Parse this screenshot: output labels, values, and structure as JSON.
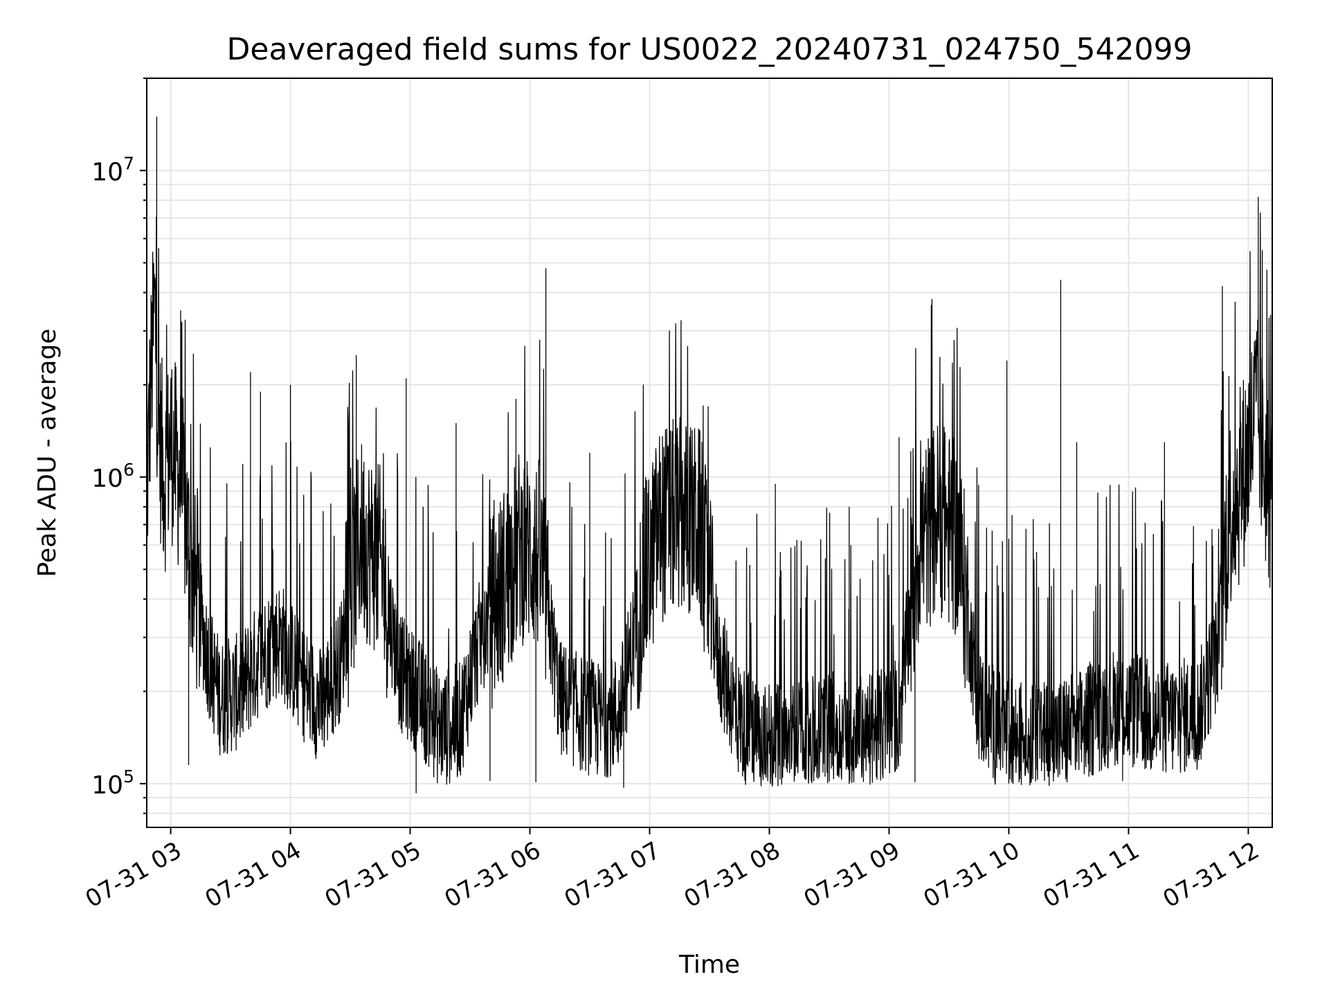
{
  "chart_data": {
    "type": "line",
    "title": "Deaveraged field sums for US0022_20240731_024750_542099",
    "xlabel": "Time",
    "ylabel": "Peak ADU - average",
    "yscale": "log",
    "ylim": [
      72000,
      20000000
    ],
    "xlim": [
      "2024-07-31 02:48",
      "2024-07-31 12:12"
    ],
    "x_ticks": [
      {
        "time": "2024-07-31 03:00",
        "label": "07-31 03"
      },
      {
        "time": "2024-07-31 04:00",
        "label": "07-31 04"
      },
      {
        "time": "2024-07-31 05:00",
        "label": "07-31 05"
      },
      {
        "time": "2024-07-31 06:00",
        "label": "07-31 06"
      },
      {
        "time": "2024-07-31 07:00",
        "label": "07-31 07"
      },
      {
        "time": "2024-07-31 08:00",
        "label": "07-31 08"
      },
      {
        "time": "2024-07-31 09:00",
        "label": "07-31 09"
      },
      {
        "time": "2024-07-31 10:00",
        "label": "07-31 10"
      },
      {
        "time": "2024-07-31 11:00",
        "label": "07-31 11"
      },
      {
        "time": "2024-07-31 12:00",
        "label": "07-31 12"
      }
    ],
    "y_ticks": [
      {
        "value": 100000,
        "base": "10",
        "exp": "5"
      },
      {
        "value": 1000000,
        "base": "10",
        "exp": "6"
      },
      {
        "value": 10000000,
        "base": "10",
        "exp": "7"
      }
    ],
    "grid": true,
    "line_color": "#000000",
    "series": [
      {
        "points": [
          [
            "2024-07-31 02:48",
            850000
          ],
          [
            "2024-07-31 02:50",
            2000000
          ],
          [
            "2024-07-31 02:52",
            3600000
          ],
          [
            "2024-07-31 02:54",
            1400000
          ],
          [
            "2024-07-31 02:57",
            1000000
          ],
          [
            "2024-07-31 03:00",
            1300000
          ],
          [
            "2024-07-31 03:03",
            1100000
          ],
          [
            "2024-07-31 03:06",
            900000
          ],
          [
            "2024-07-31 03:10",
            520000
          ],
          [
            "2024-07-31 03:15",
            340000
          ],
          [
            "2024-07-31 03:20",
            240000
          ],
          [
            "2024-07-31 03:25",
            190000
          ],
          [
            "2024-07-31 03:35",
            200000
          ],
          [
            "2024-07-31 03:45",
            260000
          ],
          [
            "2024-07-31 03:55",
            300000
          ],
          [
            "2024-07-31 04:05",
            220000
          ],
          [
            "2024-07-31 04:15",
            180000
          ],
          [
            "2024-07-31 04:25",
            250000
          ],
          [
            "2024-07-31 04:35",
            650000
          ],
          [
            "2024-07-31 04:45",
            520000
          ],
          [
            "2024-07-31 04:55",
            230000
          ],
          [
            "2024-07-31 05:05",
            190000
          ],
          [
            "2024-07-31 05:15",
            150000
          ],
          [
            "2024-07-31 05:25",
            160000
          ],
          [
            "2024-07-31 05:35",
            300000
          ],
          [
            "2024-07-31 05:45",
            420000
          ],
          [
            "2024-07-31 05:55",
            600000
          ],
          [
            "2024-07-31 06:05",
            550000
          ],
          [
            "2024-07-31 06:15",
            190000
          ],
          [
            "2024-07-31 06:25",
            170000
          ],
          [
            "2024-07-31 06:35",
            160000
          ],
          [
            "2024-07-31 06:45",
            170000
          ],
          [
            "2024-07-31 06:55",
            380000
          ],
          [
            "2024-07-31 07:05",
            700000
          ],
          [
            "2024-07-31 07:15",
            750000
          ],
          [
            "2024-07-31 07:25",
            700000
          ],
          [
            "2024-07-31 07:35",
            250000
          ],
          [
            "2024-07-31 07:45",
            160000
          ],
          [
            "2024-07-31 07:55",
            140000
          ],
          [
            "2024-07-31 08:05",
            135000
          ],
          [
            "2024-07-31 08:15",
            140000
          ],
          [
            "2024-07-31 08:25",
            145000
          ],
          [
            "2024-07-31 08:35",
            150000
          ],
          [
            "2024-07-31 08:45",
            145000
          ],
          [
            "2024-07-31 08:55",
            150000
          ],
          [
            "2024-07-31 09:05",
            170000
          ],
          [
            "2024-07-31 09:15",
            600000
          ],
          [
            "2024-07-31 09:25",
            750000
          ],
          [
            "2024-07-31 09:35",
            600000
          ],
          [
            "2024-07-31 09:45",
            180000
          ],
          [
            "2024-07-31 09:55",
            150000
          ],
          [
            "2024-07-31 10:05",
            140000
          ],
          [
            "2024-07-31 10:15",
            135000
          ],
          [
            "2024-07-31 10:25",
            145000
          ],
          [
            "2024-07-31 10:35",
            150000
          ],
          [
            "2024-07-31 10:45",
            170000
          ],
          [
            "2024-07-31 10:55",
            180000
          ],
          [
            "2024-07-31 11:05",
            170000
          ],
          [
            "2024-07-31 11:15",
            160000
          ],
          [
            "2024-07-31 11:25",
            165000
          ],
          [
            "2024-07-31 11:35",
            170000
          ],
          [
            "2024-07-31 11:45",
            280000
          ],
          [
            "2024-07-31 11:50",
            750000
          ],
          [
            "2024-07-31 11:55",
            900000
          ],
          [
            "2024-07-31 12:00",
            1200000
          ],
          [
            "2024-07-31 12:04",
            1700000
          ],
          [
            "2024-07-31 12:08",
            1100000
          ],
          [
            "2024-07-31 12:12",
            800000
          ]
        ],
        "spikes": [
          [
            "2024-07-31 02:53",
            15000000
          ],
          [
            "2024-07-31 02:51",
            5000000
          ],
          [
            "2024-07-31 03:05",
            3500000
          ],
          [
            "2024-07-31 03:40",
            2200000
          ],
          [
            "2024-07-31 03:45",
            1900000
          ],
          [
            "2024-07-31 04:00",
            2000000
          ],
          [
            "2024-07-31 04:33",
            2500000
          ],
          [
            "2024-07-31 04:58",
            2100000
          ],
          [
            "2024-07-31 05:23",
            1500000
          ],
          [
            "2024-07-31 05:53",
            1800000
          ],
          [
            "2024-07-31 06:08",
            4800000
          ],
          [
            "2024-07-31 06:30",
            1200000
          ],
          [
            "2024-07-31 06:58",
            1000000
          ],
          [
            "2024-07-31 07:14",
            1300000
          ],
          [
            "2024-07-31 08:03",
            950000
          ],
          [
            "2024-07-31 08:40",
            800000
          ],
          [
            "2024-07-31 09:05",
            1350000
          ],
          [
            "2024-07-31 09:28",
            1400000
          ],
          [
            "2024-07-31 09:59",
            2400000
          ],
          [
            "2024-07-31 10:26",
            4400000
          ],
          [
            "2024-07-31 10:34",
            1300000
          ],
          [
            "2024-07-31 11:18",
            1300000
          ],
          [
            "2024-07-31 11:47",
            4200000
          ],
          [
            "2024-07-31 12:05",
            8200000
          ],
          [
            "2024-07-31 12:07",
            5500000
          ]
        ],
        "dips": [
          [
            "2024-07-31 03:09",
            115000
          ],
          [
            "2024-07-31 05:03",
            93000
          ],
          [
            "2024-07-31 05:40",
            102000
          ],
          [
            "2024-07-31 06:03",
            101000
          ],
          [
            "2024-07-31 06:47",
            97000
          ],
          [
            "2024-07-31 08:18",
            103000
          ],
          [
            "2024-07-31 09:13",
            101000
          ],
          [
            "2024-07-31 10:00",
            100000
          ],
          [
            "2024-07-31 10:57",
            102000
          ]
        ]
      }
    ]
  }
}
